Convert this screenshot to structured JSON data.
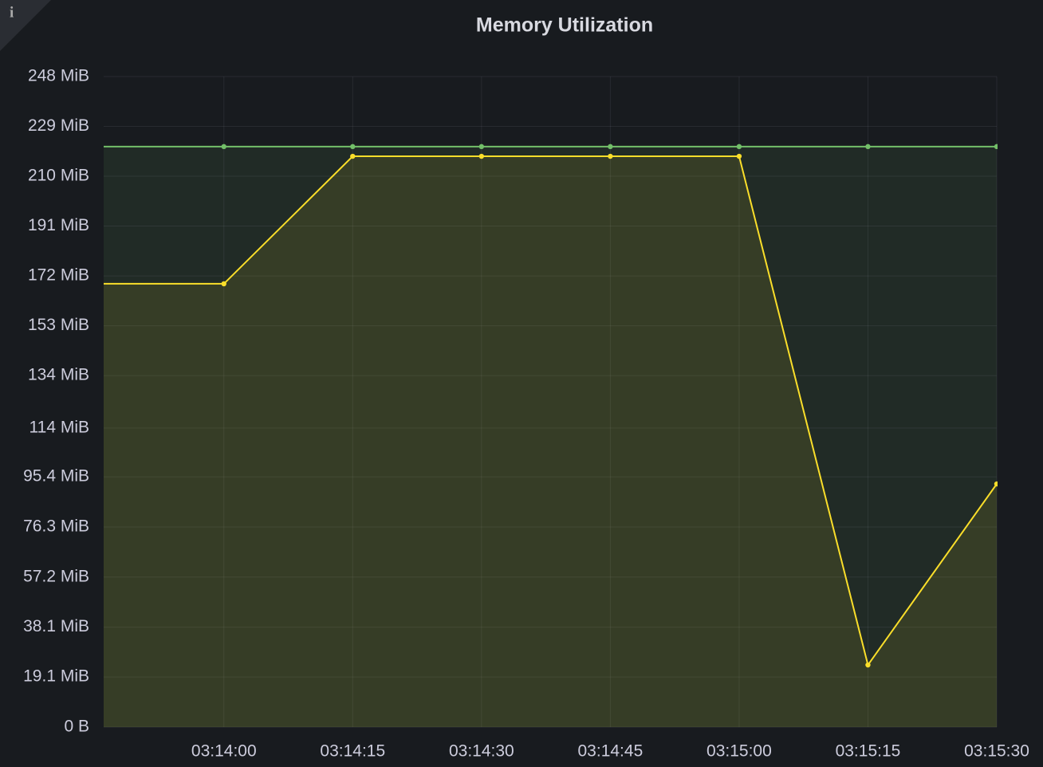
{
  "chart_data": {
    "type": "line",
    "title": "Memory Utilization",
    "x": [
      "03:13:45",
      "03:14:00",
      "03:14:15",
      "03:14:30",
      "03:14:45",
      "03:15:00",
      "03:15:15",
      "03:15:30"
    ],
    "xlim": [
      "03:13:46",
      "03:15:30"
    ],
    "xticks": [
      "03:14:00",
      "03:14:15",
      "03:14:30",
      "03:14:45",
      "03:15:00",
      "03:15:15",
      "03:15:30"
    ],
    "series": [
      {
        "color": "#73bf69",
        "values": [
          221.3,
          221.3,
          221.3,
          221.3,
          221.3,
          221.3,
          221.3,
          221.3
        ]
      },
      {
        "color": "#fade2a",
        "values": [
          169,
          169,
          217.6,
          217.6,
          217.6,
          217.6,
          23.7,
          92.7
        ]
      }
    ],
    "ylim": [
      0,
      248
    ],
    "yticks": [
      {
        "value": 0,
        "label": "0 B"
      },
      {
        "value": 19.1,
        "label": "19.1 MiB"
      },
      {
        "value": 38.1,
        "label": "38.1 MiB"
      },
      {
        "value": 57.2,
        "label": "57.2 MiB"
      },
      {
        "value": 76.3,
        "label": "76.3 MiB"
      },
      {
        "value": 95.4,
        "label": "95.4 MiB"
      },
      {
        "value": 114,
        "label": "114 MiB"
      },
      {
        "value": 134,
        "label": "134 MiB"
      },
      {
        "value": 153,
        "label": "153 MiB"
      },
      {
        "value": 172,
        "label": "172 MiB"
      },
      {
        "value": 191,
        "label": "191 MiB"
      },
      {
        "value": 210,
        "label": "210 MiB"
      },
      {
        "value": 229,
        "label": "229 MiB"
      },
      {
        "value": 248,
        "label": "248 MiB"
      }
    ],
    "grid": true
  }
}
